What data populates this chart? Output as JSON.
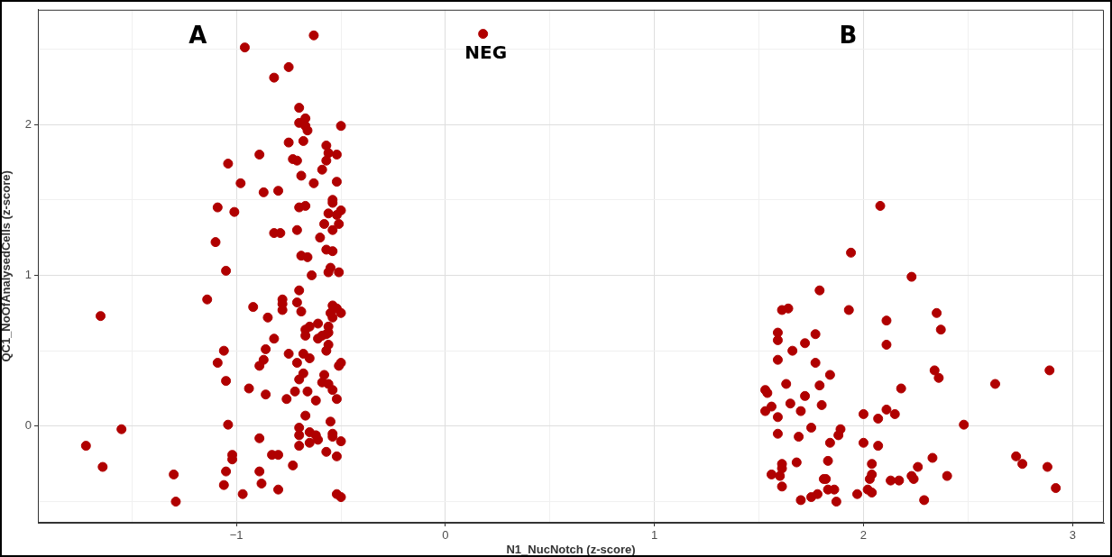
{
  "chart_data": {
    "type": "scatter",
    "xlabel": "N1_NucNotch (z-score)",
    "ylabel": "QC1_NoOfAnalysedCells (z-score)",
    "xlim": [
      -1.95,
      3.15
    ],
    "ylim": [
      -0.64,
      2.76
    ],
    "xticks": [
      {
        "value": -1.5,
        "label": null
      },
      -1,
      {
        "value": -0.5,
        "label": null
      },
      0,
      {
        "value": 0.5,
        "label": null
      },
      1,
      {
        "value": 1.5,
        "label": null
      },
      2,
      {
        "value": 2.5,
        "label": null
      },
      3
    ],
    "yticks": [
      {
        "value": -0.5,
        "label": null
      },
      0,
      {
        "value": 0.5,
        "label": null
      },
      1,
      {
        "value": 1.5,
        "label": null
      },
      2,
      {
        "value": 2.5,
        "label": null
      }
    ],
    "grid": true,
    "marker": "circle",
    "legend": false,
    "annotations": [
      "A",
      {
        "text": "NEG",
        "x": 0.18,
        "y": 2.6
      },
      "B"
    ],
    "series": [
      {
        "color": "#b00000",
        "x": [
          -0.63,
          -0.96,
          -0.75,
          -0.82,
          -0.7,
          -0.67,
          -0.7,
          -0.67,
          -0.66,
          -0.5,
          -0.75,
          -0.68,
          -0.57,
          -0.56,
          -0.52,
          -0.89,
          -0.73,
          -0.71,
          -0.57,
          -1.04,
          -0.59,
          -0.69,
          -0.52,
          -0.63,
          -0.98,
          -0.87,
          -0.8,
          -0.54,
          -0.54,
          -1.09,
          -1.01,
          -0.7,
          -0.67,
          -0.5,
          -0.56,
          -0.52,
          -0.58,
          -0.51,
          -0.54,
          -0.82,
          -0.79,
          -0.71,
          -0.6,
          -1.1,
          -0.57,
          -0.54,
          -0.69,
          -0.66,
          -1.05,
          -0.55,
          -0.56,
          -0.51,
          -0.64,
          -0.7,
          -1.14,
          -0.78,
          -0.71,
          -0.78,
          -0.92,
          -0.78,
          -0.69,
          -0.54,
          -0.52,
          -0.55,
          -0.54,
          -0.5,
          -0.85,
          -0.61,
          -0.65,
          -0.56,
          -0.67,
          -0.67,
          -0.57,
          -0.56,
          -0.61,
          -0.59,
          -0.82,
          -0.56,
          -0.57,
          -1.06,
          -0.86,
          -0.75,
          -0.68,
          -0.65,
          -0.87,
          -1.09,
          -0.71,
          -0.89,
          -0.5,
          -0.51,
          -0.68,
          -0.58,
          -0.7,
          -0.59,
          -0.56,
          -1.05,
          -0.94,
          -0.86,
          -0.72,
          -0.66,
          -0.54,
          -0.76,
          -0.62,
          -0.52,
          -0.67,
          -0.55,
          -1.04,
          -0.7,
          -0.7,
          -0.65,
          -0.89,
          -0.62,
          -0.61,
          -0.54,
          -0.54,
          -0.5,
          -0.7,
          -0.65,
          -0.57,
          -0.52,
          -1.02,
          -1.02,
          -0.83,
          -0.8,
          -0.73,
          -1.05,
          -0.89,
          -1.06,
          -0.88,
          -0.8,
          -0.97,
          -0.52,
          -0.5,
          -1.65,
          -1.55,
          -1.72,
          -1.64,
          -1.3,
          -1.29,
          0.18,
          2.08,
          1.94,
          2.23,
          1.79,
          1.61,
          1.64,
          1.93,
          2.11,
          1.59,
          1.59,
          1.77,
          1.72,
          2.11,
          1.66,
          1.59,
          1.77,
          1.84,
          1.63,
          1.79,
          2.18,
          1.53,
          1.54,
          1.72,
          1.65,
          1.8,
          1.56,
          1.53,
          1.7,
          1.59,
          2.0,
          2.11,
          2.07,
          2.15,
          1.59,
          1.75,
          1.69,
          1.89,
          1.88,
          1.84,
          2.0,
          2.07,
          1.61,
          1.61,
          1.68,
          1.83,
          2.04,
          1.56,
          1.6,
          1.61,
          1.81,
          1.82,
          2.04,
          2.03,
          2.26,
          2.23,
          2.24,
          2.13,
          2.17,
          1.83,
          1.86,
          2.02,
          2.04,
          1.97,
          1.78,
          1.75,
          1.7,
          1.87,
          2.35,
          2.37,
          2.34,
          2.36,
          2.63,
          2.89,
          2.48,
          2.73,
          2.76,
          2.88,
          2.92,
          2.33,
          2.4,
          2.29
        ],
        "values": [
          2.59,
          2.51,
          2.38,
          2.31,
          2.11,
          2.04,
          2.01,
          1.99,
          1.96,
          1.99,
          1.88,
          1.89,
          1.86,
          1.81,
          1.8,
          1.8,
          1.77,
          1.76,
          1.76,
          1.74,
          1.7,
          1.66,
          1.62,
          1.61,
          1.61,
          1.55,
          1.56,
          1.5,
          1.48,
          1.45,
          1.42,
          1.45,
          1.46,
          1.43,
          1.41,
          1.4,
          1.34,
          1.34,
          1.3,
          1.28,
          1.28,
          1.3,
          1.25,
          1.22,
          1.17,
          1.16,
          1.13,
          1.12,
          1.03,
          1.05,
          1.02,
          1.02,
          1.0,
          0.9,
          0.84,
          0.84,
          0.82,
          0.81,
          0.79,
          0.77,
          0.76,
          0.8,
          0.78,
          0.75,
          0.72,
          0.75,
          0.72,
          0.68,
          0.66,
          0.66,
          0.64,
          0.6,
          0.61,
          0.62,
          0.58,
          0.6,
          0.58,
          0.54,
          0.5,
          0.5,
          0.51,
          0.48,
          0.48,
          0.45,
          0.44,
          0.42,
          0.42,
          0.4,
          0.42,
          0.4,
          0.35,
          0.34,
          0.31,
          0.29,
          0.28,
          0.3,
          0.25,
          0.21,
          0.23,
          0.23,
          0.24,
          0.18,
          0.17,
          0.18,
          0.07,
          0.03,
          0.01,
          -0.01,
          -0.06,
          -0.04,
          -0.08,
          -0.06,
          -0.09,
          -0.05,
          -0.07,
          -0.1,
          -0.13,
          -0.11,
          -0.17,
          -0.2,
          -0.19,
          -0.22,
          -0.19,
          -0.19,
          -0.26,
          -0.3,
          -0.3,
          -0.39,
          -0.38,
          -0.42,
          -0.45,
          -0.45,
          -0.47,
          0.73,
          -0.02,
          -0.13,
          -0.27,
          -0.32,
          -0.5,
          2.6,
          1.46,
          1.15,
          0.99,
          0.9,
          0.77,
          0.78,
          0.77,
          0.7,
          0.62,
          0.57,
          0.61,
          0.55,
          0.54,
          0.5,
          0.44,
          0.42,
          0.34,
          0.28,
          0.27,
          0.25,
          0.24,
          0.22,
          0.2,
          0.15,
          0.14,
          0.13,
          0.1,
          0.1,
          0.06,
          0.08,
          0.11,
          0.05,
          0.08,
          -0.05,
          -0.01,
          -0.07,
          -0.02,
          -0.06,
          -0.11,
          -0.11,
          -0.13,
          -0.25,
          -0.28,
          -0.24,
          -0.23,
          -0.25,
          -0.32,
          -0.33,
          -0.4,
          -0.35,
          -0.35,
          -0.32,
          -0.35,
          -0.27,
          -0.33,
          -0.35,
          -0.36,
          -0.36,
          -0.42,
          -0.42,
          -0.42,
          -0.44,
          -0.45,
          -0.45,
          -0.47,
          -0.49,
          -0.5,
          0.75,
          0.64,
          0.37,
          0.32,
          0.28,
          0.37,
          0.01,
          -0.2,
          -0.25,
          -0.27,
          -0.41,
          -0.21,
          -0.33,
          -0.49
        ]
      }
    ]
  }
}
